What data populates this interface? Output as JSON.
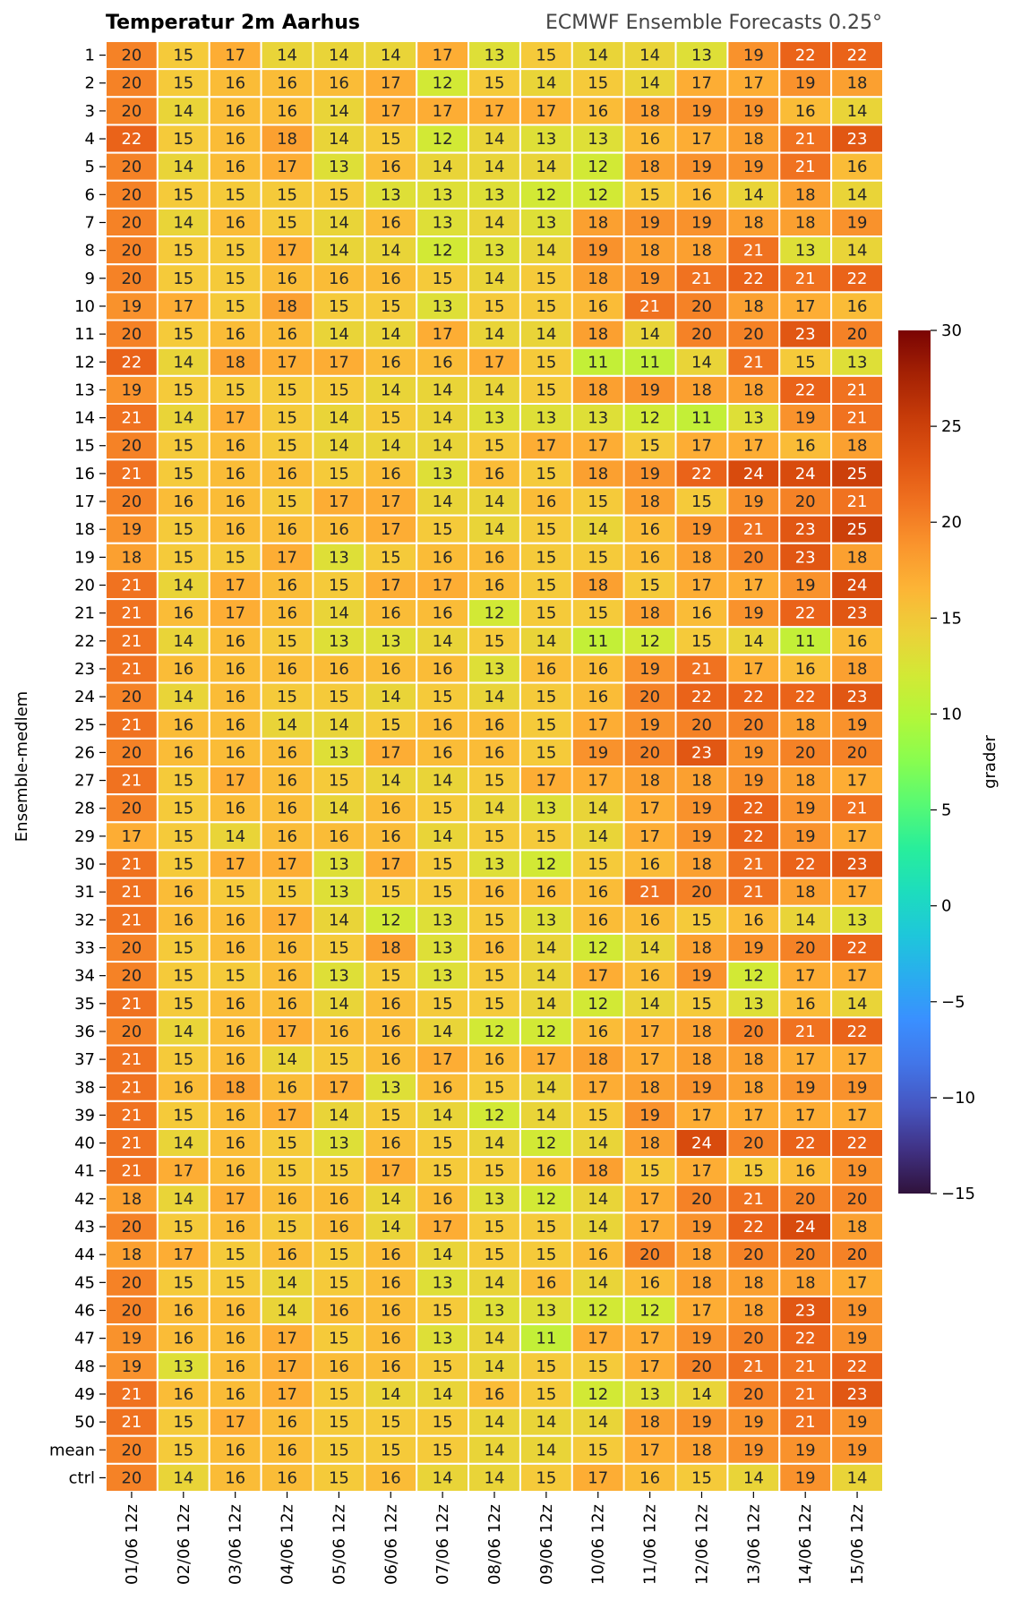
{
  "chart_data": {
    "type": "heatmap",
    "title": "Temperatur 2m Aarhus",
    "subtitle": "ECMWF Ensemble Forecasts 0.25°",
    "ylabel": "Ensemble-medlem",
    "colorbar_label": "grader",
    "colorbar_range": [
      -15,
      30
    ],
    "colorbar_ticks": [
      30,
      25,
      20,
      15,
      10,
      5,
      0,
      -5,
      -10,
      -15
    ],
    "colorbar_tick_labels": [
      "30",
      "25",
      "20",
      "15",
      "10",
      "5",
      "0",
      "−5",
      "−10",
      "−15"
    ],
    "colormap": "turbo",
    "x_categories": [
      "01/06 12z",
      "02/06 12z",
      "03/06 12z",
      "04/06 12z",
      "05/06 12z",
      "06/06 12z",
      "07/06 12z",
      "08/06 12z",
      "09/06 12z",
      "10/06 12z",
      "11/06 12z",
      "12/06 12z",
      "13/06 12z",
      "14/06 12z",
      "15/06 12z"
    ],
    "y_categories": [
      "1",
      "2",
      "3",
      "4",
      "5",
      "6",
      "7",
      "8",
      "9",
      "10",
      "11",
      "12",
      "13",
      "14",
      "15",
      "16",
      "17",
      "18",
      "19",
      "20",
      "21",
      "22",
      "23",
      "24",
      "25",
      "26",
      "27",
      "28",
      "29",
      "30",
      "31",
      "32",
      "33",
      "34",
      "35",
      "36",
      "37",
      "38",
      "39",
      "40",
      "41",
      "42",
      "43",
      "44",
      "45",
      "46",
      "47",
      "48",
      "49",
      "50",
      "mean",
      "ctrl"
    ],
    "values": [
      [
        20,
        15,
        17,
        14,
        14,
        14,
        17,
        13,
        15,
        14,
        14,
        13,
        19,
        22,
        22
      ],
      [
        20,
        15,
        16,
        16,
        16,
        17,
        12,
        15,
        14,
        15,
        14,
        17,
        17,
        19,
        18
      ],
      [
        20,
        14,
        16,
        16,
        14,
        17,
        17,
        17,
        17,
        16,
        18,
        19,
        19,
        16,
        14
      ],
      [
        22,
        15,
        16,
        18,
        14,
        15,
        12,
        14,
        13,
        13,
        16,
        17,
        18,
        21,
        23
      ],
      [
        20,
        14,
        16,
        17,
        13,
        16,
        14,
        14,
        14,
        12,
        18,
        19,
        19,
        21,
        16
      ],
      [
        20,
        15,
        15,
        15,
        15,
        13,
        13,
        13,
        12,
        12,
        15,
        16,
        14,
        18,
        14
      ],
      [
        20,
        14,
        16,
        15,
        14,
        16,
        13,
        14,
        13,
        18,
        19,
        19,
        18,
        18,
        19
      ],
      [
        20,
        15,
        15,
        17,
        14,
        14,
        12,
        13,
        14,
        19,
        18,
        18,
        21,
        13,
        14
      ],
      [
        20,
        15,
        15,
        16,
        16,
        16,
        15,
        14,
        15,
        18,
        19,
        21,
        22,
        21,
        22
      ],
      [
        19,
        17,
        15,
        18,
        15,
        15,
        13,
        15,
        15,
        16,
        21,
        20,
        18,
        17,
        16
      ],
      [
        20,
        15,
        16,
        16,
        14,
        14,
        17,
        14,
        14,
        18,
        14,
        20,
        20,
        23,
        20
      ],
      [
        22,
        14,
        18,
        17,
        17,
        16,
        16,
        17,
        15,
        11,
        11,
        14,
        21,
        15,
        13
      ],
      [
        19,
        15,
        15,
        15,
        15,
        14,
        14,
        14,
        15,
        18,
        19,
        18,
        18,
        22,
        21
      ],
      [
        21,
        14,
        17,
        15,
        14,
        15,
        14,
        13,
        13,
        13,
        12,
        11,
        13,
        19,
        21
      ],
      [
        20,
        15,
        16,
        15,
        14,
        14,
        14,
        15,
        17,
        17,
        15,
        17,
        17,
        16,
        18
      ],
      [
        21,
        15,
        16,
        16,
        15,
        16,
        13,
        16,
        15,
        18,
        19,
        22,
        24,
        24,
        25
      ],
      [
        20,
        16,
        16,
        15,
        17,
        17,
        14,
        14,
        16,
        15,
        18,
        15,
        19,
        20,
        21
      ],
      [
        19,
        15,
        16,
        16,
        16,
        17,
        15,
        14,
        15,
        14,
        16,
        19,
        21,
        23,
        25
      ],
      [
        18,
        15,
        15,
        17,
        13,
        15,
        16,
        16,
        15,
        15,
        16,
        18,
        20,
        23,
        18
      ],
      [
        21,
        14,
        17,
        16,
        15,
        17,
        17,
        16,
        15,
        18,
        15,
        17,
        17,
        19,
        24
      ],
      [
        21,
        16,
        17,
        16,
        14,
        16,
        16,
        12,
        15,
        15,
        18,
        16,
        19,
        22,
        23
      ],
      [
        21,
        14,
        16,
        15,
        13,
        13,
        14,
        15,
        14,
        11,
        12,
        15,
        14,
        11,
        16
      ],
      [
        21,
        16,
        16,
        16,
        16,
        16,
        16,
        13,
        16,
        16,
        19,
        21,
        17,
        16,
        18
      ],
      [
        20,
        14,
        16,
        15,
        15,
        14,
        15,
        14,
        15,
        16,
        20,
        22,
        22,
        22,
        23
      ],
      [
        21,
        16,
        16,
        14,
        14,
        15,
        16,
        16,
        15,
        17,
        19,
        20,
        20,
        18,
        19
      ],
      [
        20,
        16,
        16,
        16,
        13,
        17,
        16,
        16,
        15,
        19,
        20,
        23,
        19,
        20,
        20
      ],
      [
        21,
        15,
        17,
        16,
        15,
        14,
        14,
        15,
        17,
        17,
        18,
        18,
        19,
        18,
        17
      ],
      [
        20,
        15,
        16,
        16,
        14,
        16,
        15,
        14,
        13,
        14,
        17,
        19,
        22,
        19,
        21
      ],
      [
        17,
        15,
        14,
        16,
        16,
        16,
        14,
        15,
        15,
        14,
        17,
        19,
        22,
        19,
        17
      ],
      [
        21,
        15,
        17,
        17,
        13,
        17,
        15,
        13,
        12,
        15,
        16,
        18,
        21,
        22,
        23
      ],
      [
        21,
        16,
        15,
        15,
        13,
        15,
        15,
        16,
        16,
        16,
        21,
        20,
        21,
        18,
        17
      ],
      [
        21,
        16,
        16,
        17,
        14,
        12,
        13,
        15,
        13,
        16,
        16,
        15,
        16,
        14,
        13
      ],
      [
        20,
        15,
        16,
        16,
        15,
        18,
        13,
        16,
        14,
        12,
        14,
        18,
        19,
        20,
        22
      ],
      [
        20,
        15,
        15,
        16,
        13,
        15,
        13,
        15,
        14,
        17,
        16,
        19,
        12,
        17,
        17
      ],
      [
        21,
        15,
        16,
        16,
        14,
        16,
        15,
        15,
        14,
        12,
        14,
        15,
        13,
        16,
        14
      ],
      [
        20,
        14,
        16,
        17,
        16,
        16,
        14,
        12,
        12,
        16,
        17,
        18,
        20,
        21,
        22
      ],
      [
        21,
        15,
        16,
        14,
        15,
        16,
        17,
        16,
        17,
        18,
        17,
        18,
        18,
        17,
        17
      ],
      [
        21,
        16,
        18,
        16,
        17,
        13,
        16,
        15,
        14,
        17,
        18,
        19,
        18,
        19,
        19
      ],
      [
        21,
        15,
        16,
        17,
        14,
        15,
        14,
        12,
        14,
        15,
        19,
        17,
        17,
        17,
        17
      ],
      [
        21,
        14,
        16,
        15,
        13,
        16,
        15,
        14,
        12,
        14,
        18,
        24,
        20,
        22,
        22
      ],
      [
        21,
        17,
        16,
        15,
        15,
        17,
        15,
        15,
        16,
        18,
        15,
        17,
        15,
        16,
        19
      ],
      [
        18,
        14,
        17,
        16,
        16,
        14,
        16,
        13,
        12,
        14,
        17,
        20,
        21,
        20,
        20
      ],
      [
        20,
        15,
        16,
        15,
        16,
        14,
        17,
        15,
        15,
        14,
        17,
        19,
        22,
        24,
        18
      ],
      [
        18,
        17,
        15,
        16,
        15,
        16,
        14,
        15,
        15,
        16,
        20,
        18,
        20,
        20,
        20
      ],
      [
        20,
        15,
        15,
        14,
        15,
        16,
        13,
        14,
        16,
        14,
        16,
        18,
        18,
        18,
        17
      ],
      [
        20,
        16,
        16,
        14,
        16,
        16,
        15,
        13,
        13,
        12,
        12,
        17,
        18,
        23,
        19
      ],
      [
        19,
        16,
        16,
        17,
        15,
        16,
        13,
        14,
        11,
        17,
        17,
        19,
        20,
        22,
        19
      ],
      [
        19,
        13,
        16,
        17,
        16,
        16,
        15,
        14,
        15,
        15,
        17,
        20,
        21,
        21,
        22
      ],
      [
        21,
        16,
        16,
        17,
        15,
        14,
        14,
        16,
        15,
        12,
        13,
        14,
        20,
        21,
        23
      ],
      [
        21,
        15,
        17,
        16,
        15,
        15,
        15,
        14,
        14,
        14,
        18,
        19,
        19,
        21,
        19
      ],
      [
        20,
        15,
        16,
        16,
        15,
        15,
        15,
        14,
        14,
        15,
        17,
        18,
        19,
        19,
        19
      ],
      [
        20,
        14,
        16,
        16,
        15,
        16,
        14,
        14,
        15,
        17,
        16,
        15,
        14,
        19,
        14
      ]
    ]
  }
}
